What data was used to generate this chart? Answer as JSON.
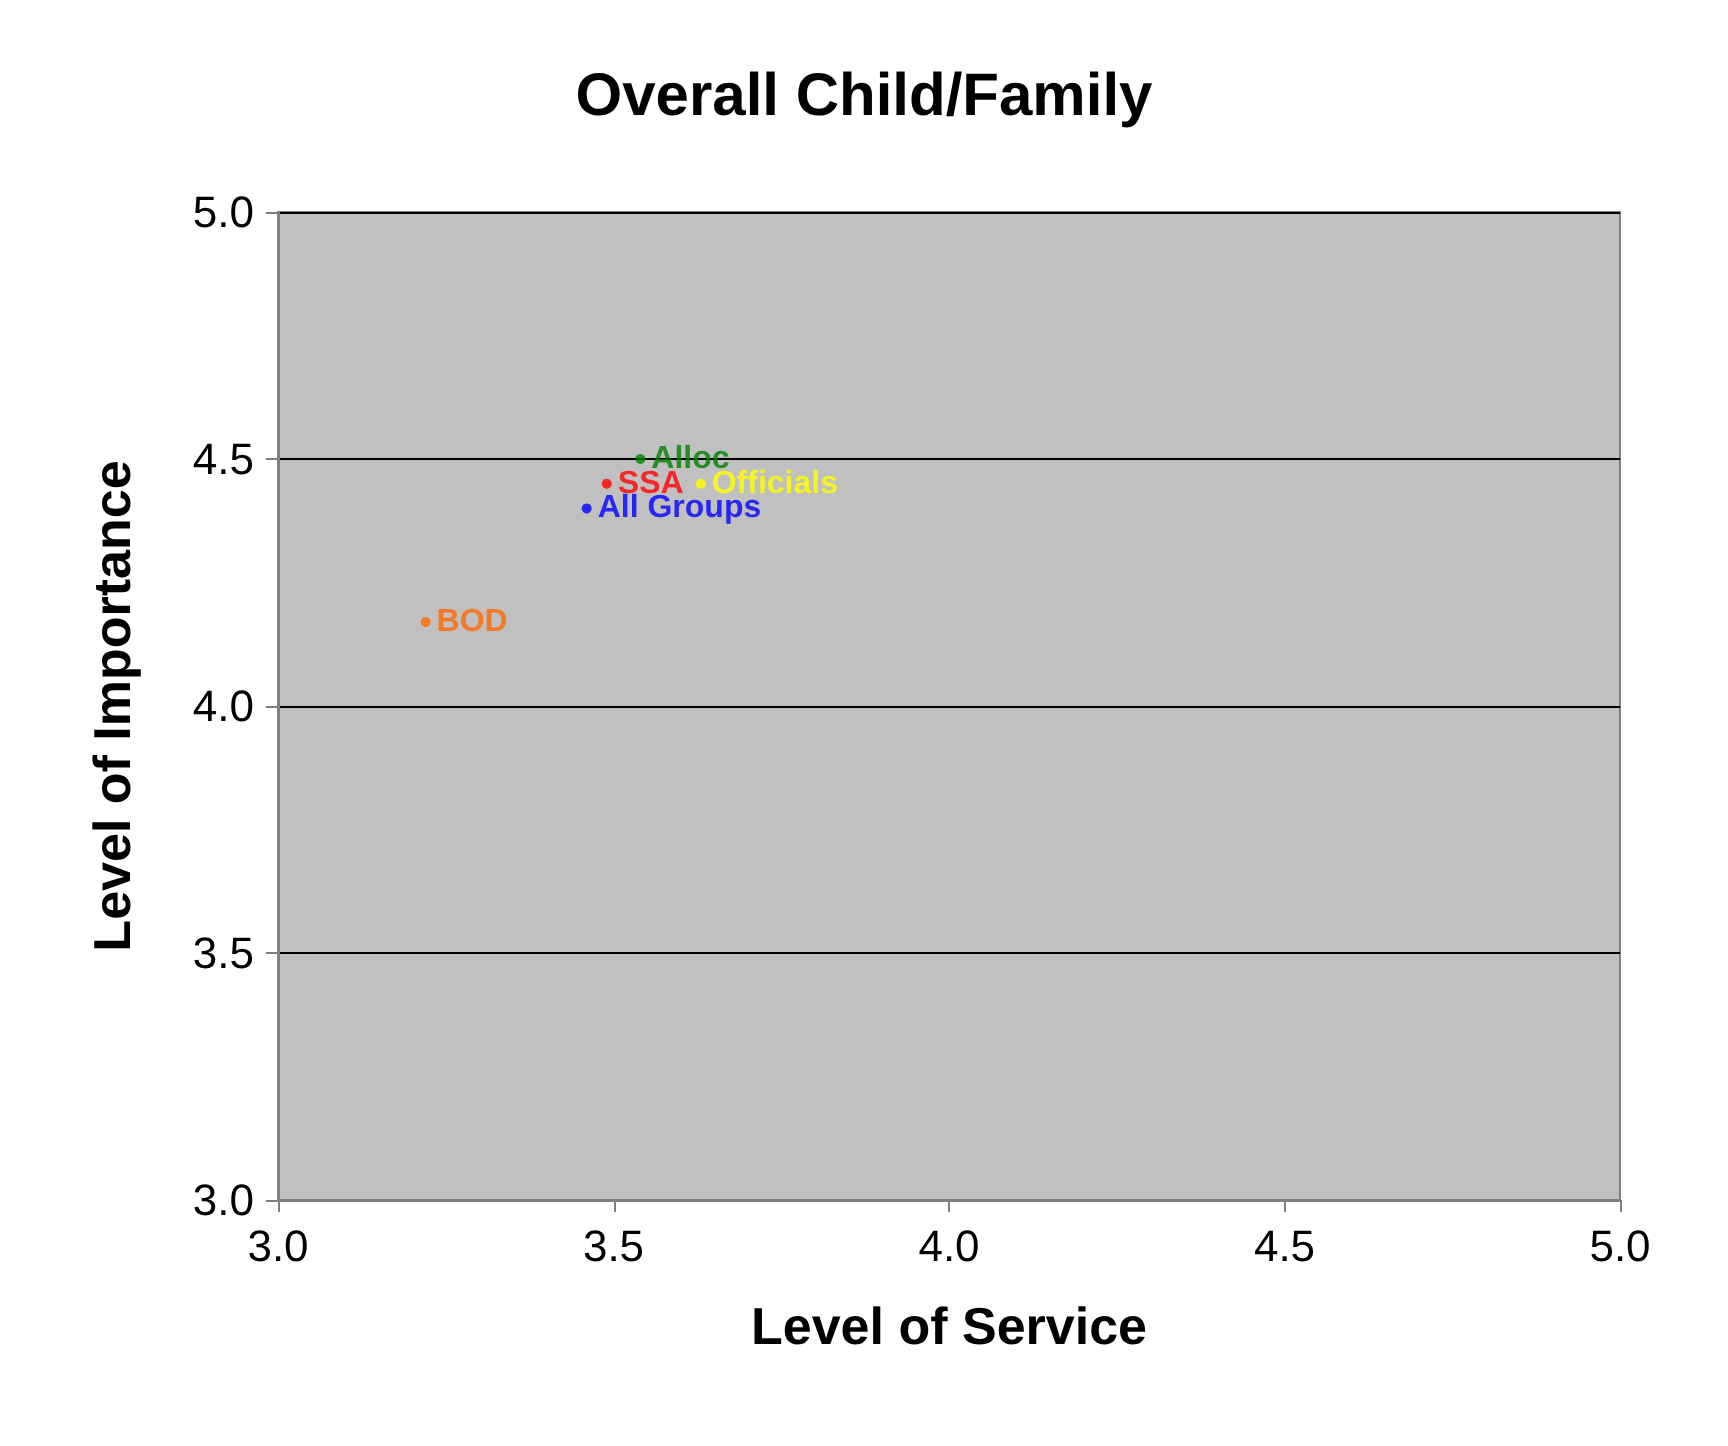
{
  "chart_data": {
    "type": "scatter",
    "title": "Overall Child/Family",
    "xlabel": "Level of Service",
    "ylabel": "Level of Importance",
    "series": [
      {
        "name": "SSA",
        "color": "#ff0000",
        "x": [
          3.49
        ],
        "values": [
          4.45
        ]
      },
      {
        "name": "All Groups",
        "color": "#0000ff",
        "x": [
          3.46
        ],
        "values": [
          4.4
        ]
      },
      {
        "name": "Alloc",
        "color": "#008000",
        "x": [
          3.54
        ],
        "values": [
          4.5
        ]
      },
      {
        "name": "Officials",
        "color": "#ffff00",
        "x": [
          3.63
        ],
        "values": [
          4.45
        ]
      },
      {
        "name": "BOD",
        "color": "#ff6600",
        "x": [
          3.22
        ],
        "values": [
          4.17
        ]
      }
    ],
    "xlim": [
      3.0,
      5.0
    ],
    "xticks": [
      {
        "value": 3,
        "label": "3.0"
      },
      {
        "value": 3.5,
        "label": "3.5"
      },
      {
        "value": 4,
        "label": "4.0"
      },
      {
        "value": 4.5,
        "label": "4.5"
      },
      {
        "value": 5,
        "label": "5.0"
      }
    ],
    "ylim": [
      3.0,
      5.0
    ],
    "yticks": [
      {
        "value": 3,
        "label": "3.0"
      },
      {
        "value": 3.5,
        "label": "3.5"
      },
      {
        "value": 4,
        "label": "4.0"
      },
      {
        "value": 4.5,
        "label": "4.5"
      },
      {
        "value": 5,
        "label": "5.0"
      }
    ],
    "grid": "y",
    "legend": false
  }
}
